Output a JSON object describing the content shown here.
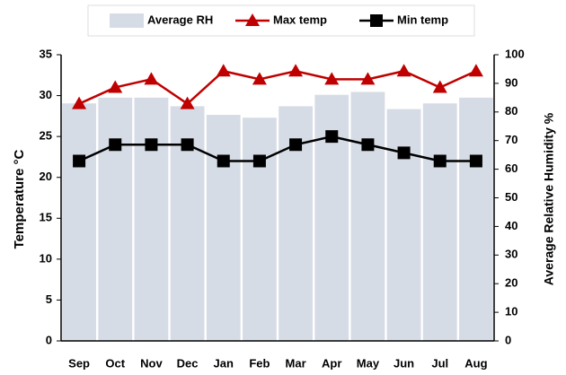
{
  "chart_data": {
    "type": "bar-line",
    "categories": [
      "Sep",
      "Oct",
      "Nov",
      "Dec",
      "Jan",
      "Feb",
      "Mar",
      "Apr",
      "May",
      "Jun",
      "Jul",
      "Aug"
    ],
    "series": [
      {
        "name": "Average RH",
        "type": "bar",
        "axis": "y2",
        "color": "#d6dce5",
        "values": [
          83,
          85,
          85,
          82,
          79,
          78,
          82,
          86,
          87,
          81,
          83,
          85
        ]
      },
      {
        "name": "Max temp",
        "type": "line",
        "marker": "triangle",
        "color": "#c00000",
        "values": [
          29,
          31,
          32,
          29,
          33,
          32,
          33,
          32,
          32,
          33,
          31,
          33
        ]
      },
      {
        "name": "Min temp",
        "type": "line",
        "marker": "square",
        "color": "#000000",
        "values": [
          22,
          24,
          24,
          24,
          22,
          22,
          24,
          25,
          24,
          23,
          22,
          22
        ]
      }
    ],
    "ylabel": "Temperature °C",
    "y2label": "Average Relative Humidity %",
    "ylim": [
      0,
      35
    ],
    "yticks": [
      0,
      5,
      10,
      15,
      20,
      25,
      30,
      35
    ],
    "y2lim": [
      0,
      100
    ],
    "y2ticks": [
      0,
      10,
      20,
      30,
      40,
      50,
      60,
      70,
      80,
      90,
      100
    ],
    "legend": "top"
  }
}
